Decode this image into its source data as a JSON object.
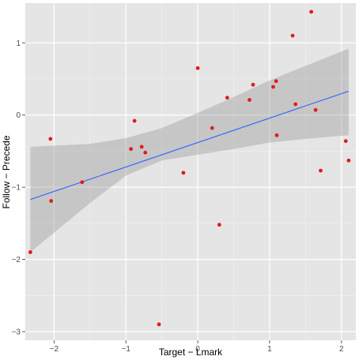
{
  "chart_data": {
    "type": "scatter",
    "xlabel": "Target − Lmark",
    "ylabel": "Follow − Precede",
    "xlim": [
      -2.4,
      2.2
    ],
    "ylim": [
      -3.12,
      1.55
    ],
    "x_ticks": [
      -2,
      -1,
      0,
      1,
      2
    ],
    "x_tick_labels": [
      "−2",
      "−1",
      "0",
      "1",
      "2"
    ],
    "y_ticks": [
      -3,
      -2,
      -1,
      0,
      1
    ],
    "y_tick_labels": [
      "−3",
      "−2",
      "−1",
      "0",
      "1"
    ],
    "grid": true,
    "points": [
      {
        "x": -2.33,
        "y": -1.9
      },
      {
        "x": -2.05,
        "y": -0.33
      },
      {
        "x": -2.04,
        "y": -1.19
      },
      {
        "x": -1.61,
        "y": -0.93
      },
      {
        "x": -0.93,
        "y": -0.47
      },
      {
        "x": -0.88,
        "y": -0.08
      },
      {
        "x": -0.78,
        "y": -0.44
      },
      {
        "x": -0.73,
        "y": -0.52
      },
      {
        "x": -0.54,
        "y": -2.9
      },
      {
        "x": -0.2,
        "y": -0.8
      },
      {
        "x": 0.0,
        "y": 0.65
      },
      {
        "x": 0.2,
        "y": -0.18
      },
      {
        "x": 0.3,
        "y": -1.52
      },
      {
        "x": 0.41,
        "y": 0.24
      },
      {
        "x": 0.72,
        "y": 0.21
      },
      {
        "x": 0.77,
        "y": 0.42
      },
      {
        "x": 1.05,
        "y": 0.39
      },
      {
        "x": 1.09,
        "y": 0.47
      },
      {
        "x": 1.1,
        "y": -0.28
      },
      {
        "x": 1.32,
        "y": 1.1
      },
      {
        "x": 1.36,
        "y": 0.15
      },
      {
        "x": 1.58,
        "y": 1.43
      },
      {
        "x": 1.64,
        "y": 0.07
      },
      {
        "x": 1.71,
        "y": -0.77
      },
      {
        "x": 2.06,
        "y": -0.36
      },
      {
        "x": 2.1,
        "y": -0.63
      }
    ],
    "fit_line": {
      "x": [
        -2.33,
        2.1
      ],
      "y": [
        -1.17,
        0.33
      ]
    },
    "confidence_band": {
      "x": [
        -2.33,
        -1.5,
        -1.0,
        -0.5,
        0.0,
        0.5,
        1.0,
        1.5,
        2.1
      ],
      "upper": [
        -0.44,
        -0.4,
        -0.32,
        -0.18,
        0.03,
        0.25,
        0.48,
        0.68,
        0.92
      ],
      "lower": [
        -1.9,
        -1.22,
        -0.84,
        -0.63,
        -0.55,
        -0.47,
        -0.38,
        -0.33,
        -0.28
      ]
    },
    "colors": {
      "panel": "#e5e5e5",
      "grid_major": "#ffffff",
      "grid_minor": "#f2f2f2",
      "point": "#e41a1c",
      "line": "#3366ff",
      "band": "#999999"
    }
  }
}
